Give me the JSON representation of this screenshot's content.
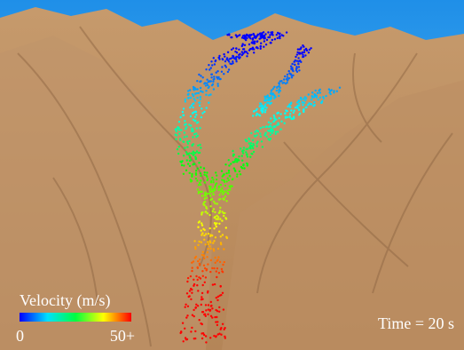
{
  "legend": {
    "title": "Velocity (m/s)",
    "min_label": "0",
    "max_label": "50+"
  },
  "time_label": "Time = 20 s"
}
